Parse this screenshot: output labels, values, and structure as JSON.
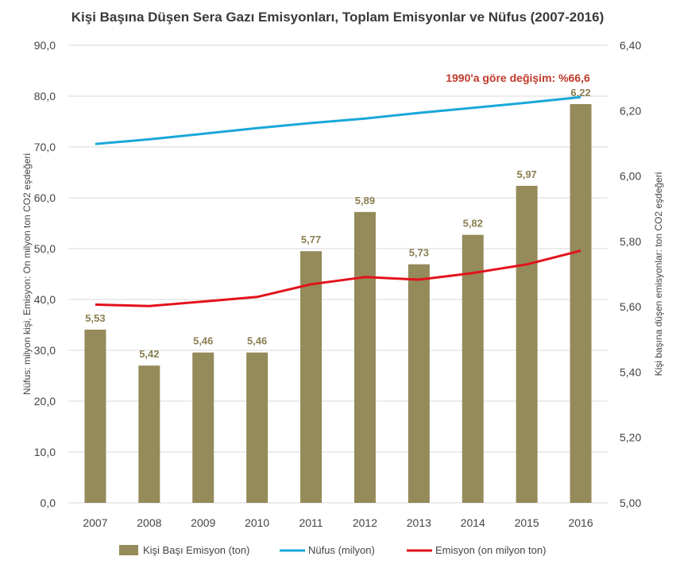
{
  "chart_data": {
    "type": "bar",
    "title": "Kişi Başına Düşen Sera Gazı Emisyonları, Toplam Emisyonlar ve Nüfus (2007-2016)",
    "categories": [
      "2007",
      "2008",
      "2009",
      "2010",
      "2011",
      "2012",
      "2013",
      "2014",
      "2015",
      "2016"
    ],
    "ylabel_left": "Nüfus: milyon kişi, Emisyon: On milyon ton CO2 eşdeğeri",
    "ylabel_right": "Kişi başına düşen emisyonlar: ton CO2 eşdeğeri",
    "ylim_left": [
      0,
      90
    ],
    "ylim_right": [
      5.0,
      6.4
    ],
    "yticks_left": [
      "0,0",
      "10,0",
      "20,0",
      "30,0",
      "40,0",
      "50,0",
      "60,0",
      "70,0",
      "80,0",
      "90,0"
    ],
    "yticks_right": [
      "5,00",
      "5,20",
      "5,40",
      "5,60",
      "5,80",
      "6,00",
      "6,20",
      "6,40"
    ],
    "grid": true,
    "legend_position": "bottom",
    "series": [
      {
        "name": "Kişi Başı Emisyon (ton)",
        "kind": "bar",
        "axis": "right",
        "color": "#948a5a",
        "values": [
          5.53,
          5.42,
          5.46,
          5.46,
          5.77,
          5.89,
          5.73,
          5.82,
          5.97,
          6.22
        ],
        "labels": [
          "5,53",
          "5,42",
          "5,46",
          "5,46",
          "5,77",
          "5,89",
          "5,73",
          "5,82",
          "5,97",
          "6,22"
        ]
      },
      {
        "name": "Nüfus (milyon)",
        "kind": "line",
        "axis": "left",
        "color": "#1aa7d9",
        "values": [
          70.6,
          71.5,
          72.6,
          73.7,
          74.7,
          75.6,
          76.7,
          77.7,
          78.7,
          79.8
        ]
      },
      {
        "name": "Emisyon (on milyon ton)",
        "kind": "line",
        "axis": "left",
        "color": "#e3121b",
        "values": [
          39.0,
          38.7,
          39.6,
          40.5,
          43.0,
          44.4,
          43.9,
          45.2,
          46.9,
          49.6
        ]
      }
    ],
    "annotations": [
      {
        "text": "1990'a göre değişim: %66,6",
        "color": "#c0392b"
      }
    ]
  }
}
